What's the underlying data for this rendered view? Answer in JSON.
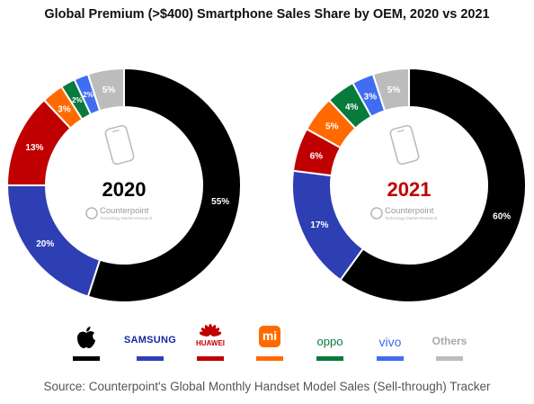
{
  "title": "Global Premium (>$400) Smartphone Sales Share by OEM, 2020 vs 2021",
  "source": "Source: Counterpoint's Global Monthly Handset Model Sales (Sell-through) Tracker",
  "watermark": {
    "name": "Counterpoint",
    "tagline": "Technology Market Research"
  },
  "colors": {
    "Apple": "#000000",
    "Samsung": "#2e3fb4",
    "Huawei": "#c00000",
    "Xiaomi": "#ff6a00",
    "OPPO": "#077a3c",
    "vivo": "#3f6cf0",
    "Others": "#bcbcbc",
    "year2021": "#c00000",
    "year2020": "#000000"
  },
  "legend": [
    {
      "brand": "Apple",
      "logo_text": "",
      "icon": "apple-logo-icon"
    },
    {
      "brand": "Samsung",
      "logo_text": "SAMSUNG"
    },
    {
      "brand": "Huawei",
      "logo_text": "HUAWEI",
      "icon": "huawei-flower-icon"
    },
    {
      "brand": "Xiaomi",
      "logo_text": "mi"
    },
    {
      "brand": "OPPO",
      "logo_text": "oppo"
    },
    {
      "brand": "vivo",
      "logo_text": "vivo"
    },
    {
      "brand": "Others",
      "logo_text": "Others"
    }
  ],
  "chart_data": [
    {
      "type": "pie",
      "center_label": "2020",
      "categories": [
        "Apple",
        "Samsung",
        "Huawei",
        "Xiaomi",
        "OPPO",
        "vivo",
        "Others"
      ],
      "values": [
        55,
        20,
        13,
        3,
        2,
        2,
        5
      ],
      "labels": [
        "55%",
        "20%",
        "13%",
        "3%",
        "2%",
        "2%",
        "5%"
      ]
    },
    {
      "type": "pie",
      "center_label": "2021",
      "categories": [
        "Apple",
        "Samsung",
        "Huawei",
        "Xiaomi",
        "OPPO",
        "vivo",
        "Others"
      ],
      "values": [
        60,
        17,
        6,
        5,
        4,
        3,
        5
      ],
      "labels": [
        "60%",
        "17%",
        "6%",
        "5%",
        "4%",
        "3%",
        "5%"
      ]
    }
  ]
}
